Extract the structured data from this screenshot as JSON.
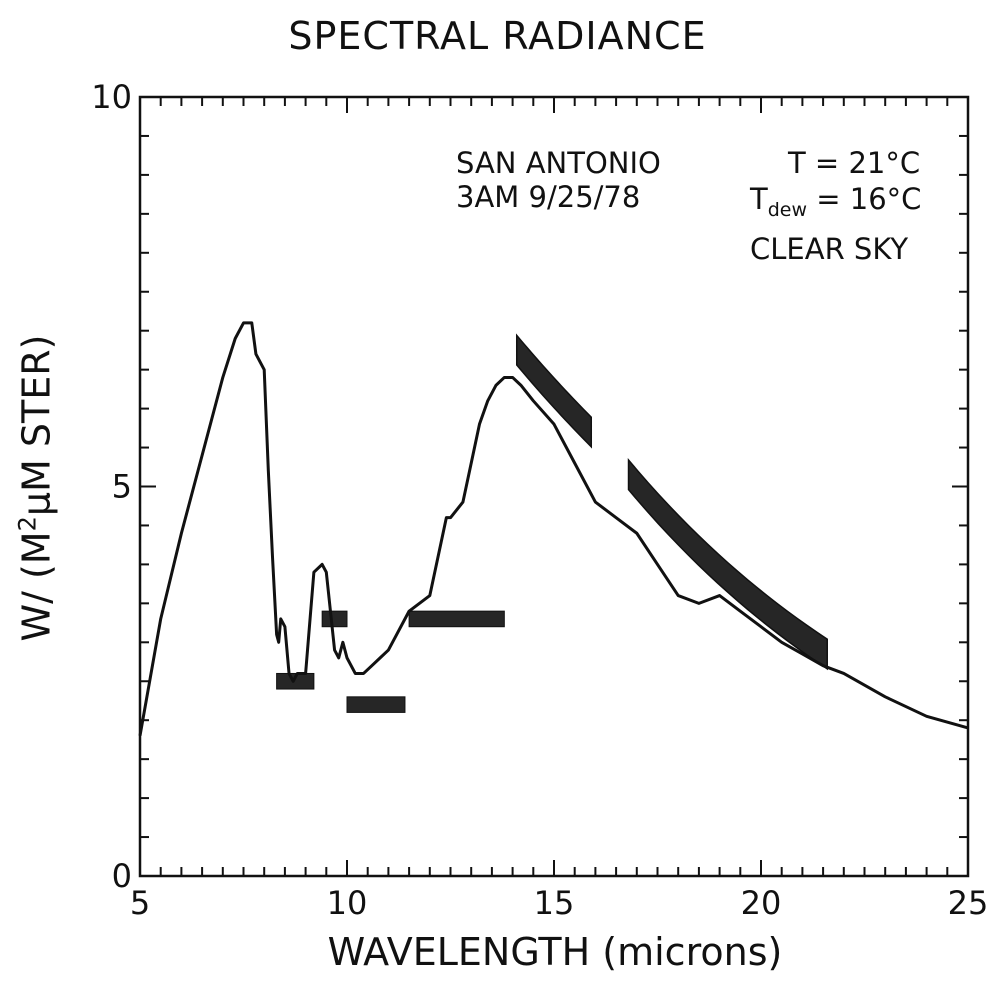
{
  "chart_data": {
    "type": "line",
    "title": "SPECTRAL RADIANCE",
    "xlabel": "WAVELENGTH (microns)",
    "ylabel_prefix": "W/ (M",
    "ylabel_sup": "2",
    "ylabel_suffix": "μM STER)",
    "xlim": [
      5,
      25
    ],
    "ylim": [
      0,
      10
    ],
    "x_ticks": [
      5,
      10,
      15,
      20,
      25
    ],
    "y_ticks": [
      0,
      5,
      10
    ],
    "annotations": {
      "location": "SAN ANTONIO",
      "datetime": "3AM 9/25/78",
      "temp": "T = 21°C",
      "tdew_main": "T",
      "tdew_sub": "dew",
      "tdew_value": " = 16°C",
      "sky": "CLEAR SKY"
    },
    "series": [
      {
        "x": [
          5.0,
          5.5,
          6.0,
          6.5,
          7.0,
          7.3,
          7.5,
          7.7,
          7.8,
          8.0,
          8.1,
          8.2,
          8.3,
          8.35,
          8.4,
          8.5,
          8.6,
          8.7,
          8.8,
          9.0,
          9.2,
          9.4,
          9.5,
          9.6,
          9.7,
          9.8,
          9.9,
          10.0,
          10.2,
          10.4,
          10.6,
          10.8,
          11.0,
          11.5,
          12.0,
          12.4,
          12.5,
          12.8,
          13.0,
          13.2,
          13.4,
          13.6,
          13.8,
          14.0,
          14.2,
          14.5,
          15.0,
          15.5,
          16.0,
          16.5,
          17.0,
          17.5,
          18.0,
          18.5,
          19.0,
          19.5,
          20.0,
          20.5,
          21.0,
          21.5,
          22.0,
          23.0,
          24.0,
          25.0
        ],
        "y": [
          1.8,
          3.3,
          4.4,
          5.4,
          6.4,
          6.9,
          7.1,
          7.1,
          6.7,
          6.5,
          5.2,
          4.1,
          3.1,
          3.0,
          3.3,
          3.2,
          2.6,
          2.5,
          2.6,
          2.6,
          3.9,
          4.0,
          3.9,
          3.4,
          2.9,
          2.8,
          3.0,
          2.8,
          2.6,
          2.6,
          2.7,
          2.8,
          2.9,
          3.4,
          3.6,
          4.6,
          4.6,
          4.8,
          5.3,
          5.8,
          6.1,
          6.3,
          6.4,
          6.4,
          6.3,
          6.1,
          5.8,
          5.3,
          4.8,
          4.6,
          4.4,
          4.0,
          3.6,
          3.5,
          3.6,
          3.4,
          3.2,
          3.0,
          2.85,
          2.7,
          2.6,
          2.3,
          2.05,
          1.9
        ]
      }
    ],
    "measurement_bars": [
      {
        "x_start": 8.3,
        "x_end": 9.2,
        "y": 2.5
      },
      {
        "x_start": 9.4,
        "x_end": 10.0,
        "y": 3.3
      },
      {
        "x_start": 10.0,
        "x_end": 11.4,
        "y": 2.2
      },
      {
        "x_start": 11.5,
        "x_end": 13.8,
        "y": 3.3
      }
    ],
    "planck_bands": [
      {
        "x_start": 14.1,
        "x_end": 15.9,
        "y_start": 6.75,
        "y_end": 5.7,
        "width": 0.38
      },
      {
        "x_start": 16.8,
        "x_end": 21.6,
        "y_start": 5.15,
        "y_end": 2.85,
        "width": 0.38
      }
    ]
  }
}
